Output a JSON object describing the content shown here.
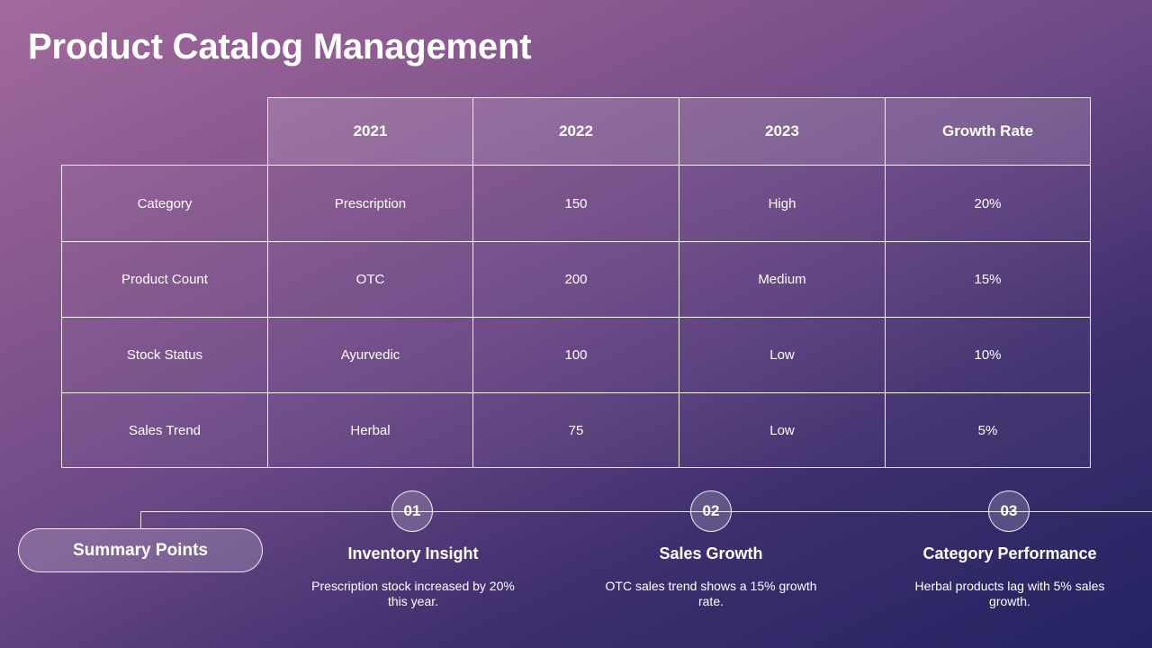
{
  "title": "Product Catalog Management",
  "table": {
    "headers": [
      "",
      "2021",
      "2022",
      "2023",
      "Growth Rate"
    ],
    "rows": [
      [
        "Category",
        "Prescription",
        "150",
        "High",
        "20%"
      ],
      [
        "Product Count",
        "OTC",
        "200",
        "Medium",
        "15%"
      ],
      [
        "Stock Status",
        "Ayurvedic",
        "100",
        "Low",
        "10%"
      ],
      [
        "Sales Trend",
        "Herbal",
        "75",
        "Low",
        "5%"
      ]
    ]
  },
  "summary": {
    "label": "Summary Points",
    "points": [
      {
        "number": "01",
        "title": "Inventory Insight",
        "description": "Prescription stock increased by 20% this year."
      },
      {
        "number": "02",
        "title": "Sales Growth",
        "description": "OTC sales trend shows a 15% growth rate."
      },
      {
        "number": "03",
        "title": "Category Performance",
        "description": "Herbal products lag with 5% sales growth."
      }
    ]
  }
}
